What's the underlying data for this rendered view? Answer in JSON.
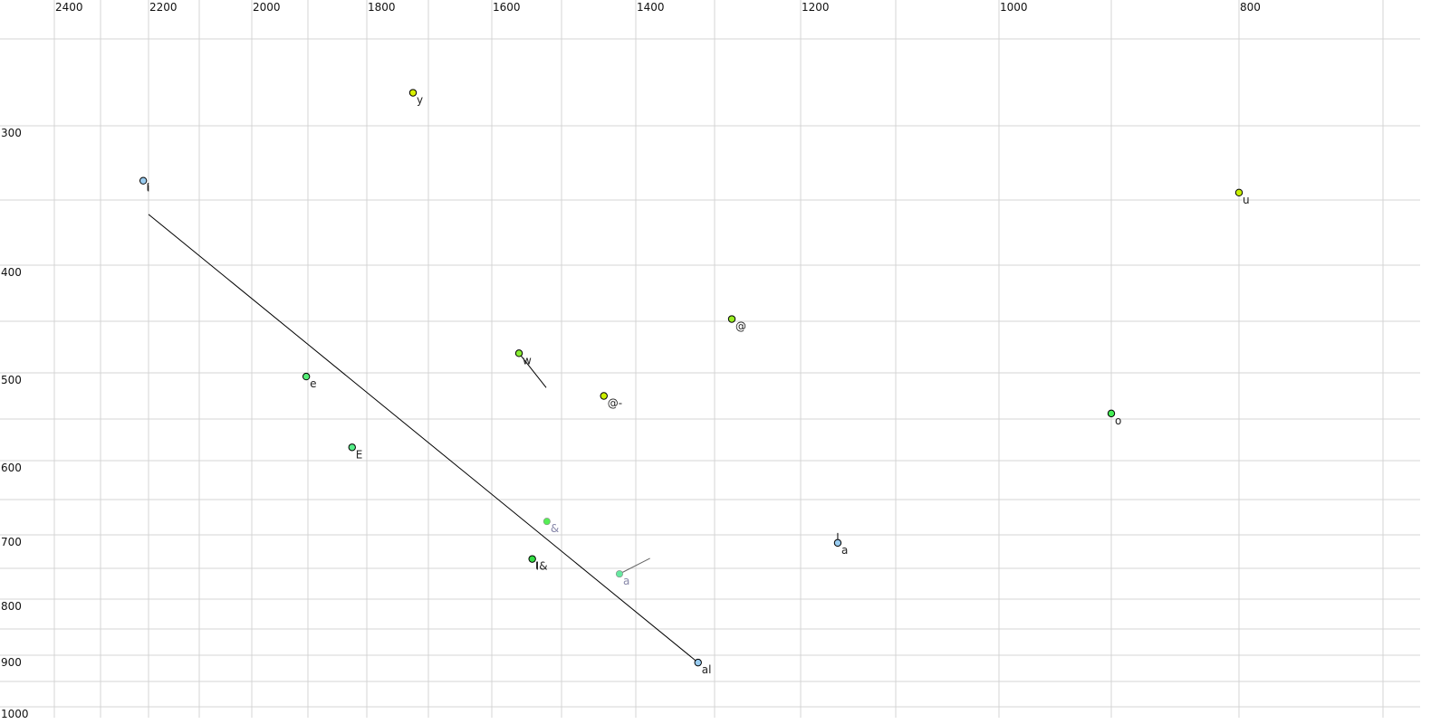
{
  "chart_data": {
    "type": "scatter",
    "title": "",
    "xlabel": "",
    "ylabel": "",
    "x_axis": {
      "position": "top",
      "reversed": true,
      "grid_step": 100,
      "range": [
        700,
        2400
      ],
      "tick_labels": [
        "2400",
        "2200",
        "2000",
        "1800",
        "1600",
        "1400",
        "1200",
        "1000",
        "800"
      ]
    },
    "y_axis": {
      "position": "left",
      "reversed": false,
      "grid_step": 50,
      "range": [
        250,
        1000
      ],
      "tick_labels": [
        "300",
        "400",
        "500",
        "600",
        "700",
        "800",
        "900",
        "1000"
      ]
    },
    "grid": true,
    "points": [
      {
        "label": "y",
        "x": 1725,
        "y": 281,
        "color": "#d8f000",
        "label_color": "#222222"
      },
      {
        "label": "i",
        "x": 2211,
        "y": 337,
        "color": "#99ccf0",
        "label_color": "#222222",
        "stem": "down"
      },
      {
        "label": "u",
        "x": 800,
        "y": 345,
        "color": "#c8f000",
        "label_color": "#222222"
      },
      {
        "label": "@",
        "x": 1280,
        "y": 448,
        "color": "#99ee22",
        "label_color": "#222222"
      },
      {
        "label": "w",
        "x": 1561,
        "y": 481,
        "color": "#88ee33",
        "label_color": "#222222"
      },
      {
        "label": "e",
        "x": 1903,
        "y": 504,
        "color": "#55ee77",
        "label_color": "#222222"
      },
      {
        "label": "@-",
        "x": 1443,
        "y": 525,
        "color": "#ccf000",
        "label_color": "#222222"
      },
      {
        "label": "o",
        "x": 900,
        "y": 544,
        "color": "#44ee55",
        "label_color": "#222222"
      },
      {
        "label": "E",
        "x": 1825,
        "y": 584,
        "color": "#55ee88",
        "label_color": "#222222"
      },
      {
        "label": "&",
        "x": 1521,
        "y": 681,
        "color": "#55ee55",
        "label_color": "#8888aa",
        "no_border": true
      },
      {
        "label": "a",
        "x": 1161,
        "y": 712,
        "color": "#99ccf0",
        "label_color": "#222222",
        "stem": "up"
      },
      {
        "label": "I&",
        "x": 1542,
        "y": 736,
        "color": "#33dd44",
        "label_color": "#222222",
        "stem": "down"
      },
      {
        "label": "a",
        "x": 1422,
        "y": 759,
        "color": "#66e8a0",
        "label_color": "#8888aa",
        "no_border": true
      },
      {
        "label": "al",
        "x": 1321,
        "y": 914,
        "color": "#99ccf0",
        "label_color": "#222222"
      }
    ],
    "trajectories": [
      {
        "from": [
          1321,
          914
        ],
        "to": [
          2200,
          361
        ],
        "color": "#000000"
      },
      {
        "from": [
          1561,
          481
        ],
        "to": [
          1522,
          516
        ],
        "color": "#000000"
      },
      {
        "from": [
          1422,
          759
        ],
        "to": [
          1382,
          735
        ],
        "color": "#666666"
      }
    ]
  }
}
